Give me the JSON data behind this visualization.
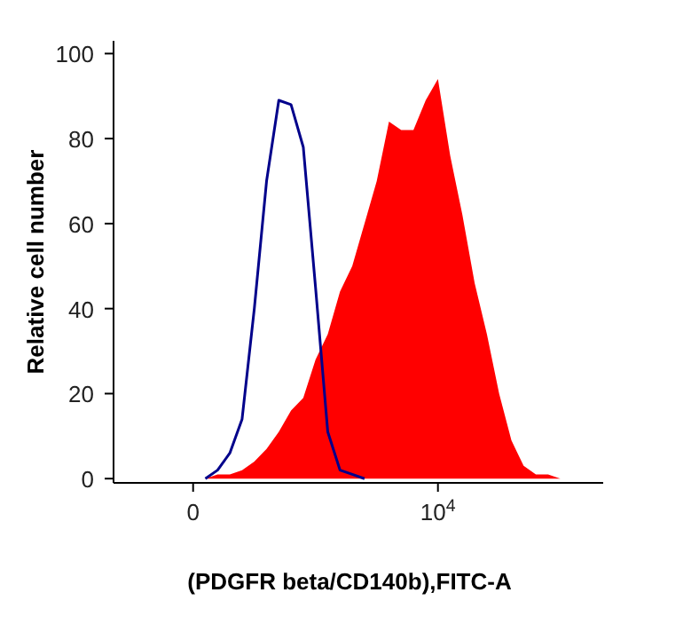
{
  "chart_data": {
    "type": "area",
    "xlabel": "(PDGFR beta/CD140b),FITC-A",
    "ylabel": "Relative cell number",
    "categories": [
      null,
      null,
      null,
      null,
      null,
      null,
      "0",
      null,
      null,
      null,
      null,
      null,
      null,
      null,
      null,
      null,
      null,
      null,
      null,
      null,
      null,
      null,
      null,
      null,
      null,
      null,
      "10$^{4}$",
      null,
      null,
      null,
      null,
      null,
      null,
      null,
      null,
      null,
      null,
      null,
      null,
      null
    ],
    "series": [
      {
        "color": "#ff0000",
        "values": [
          null,
          null,
          null,
          null,
          null,
          null,
          null,
          0,
          1,
          1,
          2,
          4,
          7,
          11,
          16,
          19,
          28,
          34,
          44,
          50,
          60,
          70,
          84,
          82,
          82,
          89,
          94,
          76,
          62,
          46,
          34,
          20,
          9,
          3,
          1,
          1,
          0,
          null,
          null,
          null
        ]
      },
      {
        "type": "line",
        "color": "#00008b",
        "values": [
          null,
          null,
          null,
          null,
          null,
          null,
          null,
          0,
          2,
          6,
          14,
          40,
          70,
          89,
          88,
          78,
          45,
          11,
          2,
          1,
          0,
          null,
          null,
          null,
          null,
          null,
          null,
          null,
          null,
          null,
          null,
          null,
          null,
          null,
          null,
          null,
          null,
          null,
          null,
          null
        ]
      }
    ],
    "ylim": [
      -1,
      103
    ],
    "yticks": [
      0,
      20,
      40,
      60,
      80,
      100
    ],
    "grid": false,
    "legend": false
  }
}
